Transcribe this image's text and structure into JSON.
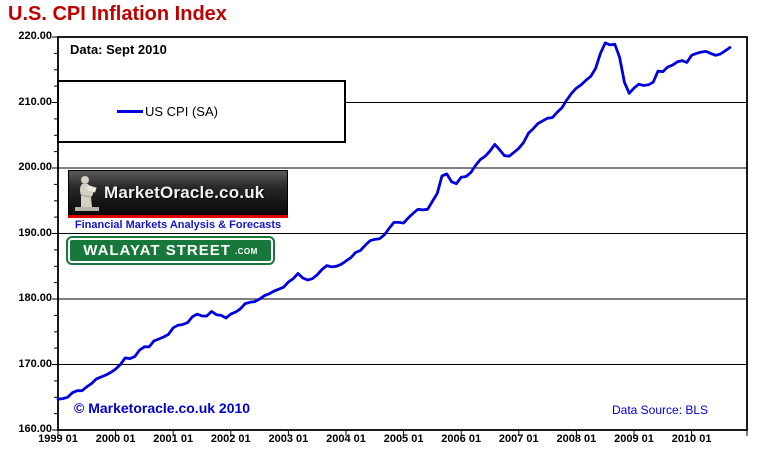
{
  "title": "U.S. CPI Inflation Index",
  "annotations": {
    "data_label": "Data: Sept 2010",
    "copyright": "© Marketoracle.co.uk  2010",
    "data_source": "Data Source: BLS"
  },
  "legend": {
    "label": "US CPI (SA)"
  },
  "logos": {
    "market_oracle": {
      "name": "MarketOracle.co.uk",
      "tagline": "Financial Markets Analysis & Forecasts"
    },
    "walayat": {
      "name": "WALAYAT STREET",
      "suffix": ".COM"
    }
  },
  "colors": {
    "title": "#c00000",
    "line": "#0000dd",
    "blue_text": "#0000cc",
    "tagline_blue": "#1414cc",
    "walayat_green": "#18773a",
    "red_bar": "#e00000"
  },
  "chart_data": {
    "type": "line",
    "title": "U.S. CPI Inflation Index",
    "xlabel": "",
    "ylabel": "",
    "ylim": [
      160,
      220
    ],
    "y_ticks": [
      220,
      210,
      200,
      190,
      180,
      170,
      160
    ],
    "y_tick_labels": [
      "220.00",
      "210.00",
      "200.00",
      "190.00",
      "180.00",
      "170.00",
      "160.00"
    ],
    "y_minor_step": 2.5,
    "grid": "horizontal-major",
    "legend_position": "top-left-box",
    "x_tick_labels": [
      "1999 01",
      "2000 01",
      "2001 01",
      "2002 01",
      "2003 01",
      "2004 01",
      "2005 01",
      "2006 01",
      "2007 01",
      "2008 01",
      "2009 01",
      "2010 01"
    ],
    "x_start": "1999-01",
    "x_end": "2010-09",
    "series": [
      {
        "name": "US CPI (SA)",
        "color": "#0000dd",
        "frequency": "monthly",
        "values": [
          164.7,
          164.8,
          165.0,
          165.7,
          166.0,
          166.0,
          166.6,
          167.1,
          167.8,
          168.1,
          168.4,
          168.8,
          169.3,
          170.0,
          171.0,
          170.9,
          171.2,
          172.2,
          172.7,
          172.7,
          173.6,
          173.9,
          174.2,
          174.6,
          175.6,
          176.0,
          176.1,
          176.4,
          177.3,
          177.7,
          177.4,
          177.4,
          178.1,
          177.6,
          177.5,
          177.1,
          177.7,
          178.0,
          178.5,
          179.3,
          179.5,
          179.6,
          180.0,
          180.5,
          180.8,
          181.2,
          181.5,
          181.8,
          182.6,
          183.1,
          183.9,
          183.2,
          182.9,
          183.1,
          183.7,
          184.5,
          185.1,
          184.9,
          185.0,
          185.3,
          185.8,
          186.3,
          187.1,
          187.4,
          188.2,
          188.9,
          189.1,
          189.2,
          189.8,
          190.8,
          191.7,
          191.7,
          191.6,
          192.4,
          193.1,
          193.7,
          193.6,
          193.7,
          194.9,
          196.1,
          198.8,
          199.1,
          197.9,
          197.6,
          198.6,
          198.7,
          199.3,
          200.4,
          201.3,
          201.8,
          202.6,
          203.6,
          202.8,
          201.9,
          201.8,
          202.4,
          203.0,
          203.9,
          205.3,
          206.0,
          206.8,
          207.2,
          207.6,
          207.7,
          208.5,
          209.2,
          210.4,
          211.4,
          212.2,
          212.7,
          213.4,
          214.0,
          215.2,
          217.5,
          219.1,
          218.8,
          218.9,
          216.9,
          213.1,
          211.4,
          212.2,
          212.8,
          212.6,
          212.7,
          213.1,
          214.8,
          214.7,
          215.4,
          215.7,
          216.2,
          216.4,
          216.1,
          217.2,
          217.5,
          217.7,
          217.8,
          217.5,
          217.2,
          217.4,
          217.9,
          218.4
        ]
      }
    ]
  }
}
